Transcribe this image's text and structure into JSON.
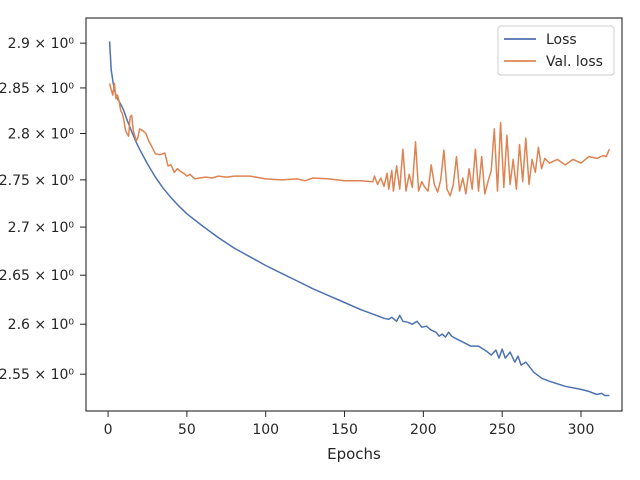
{
  "chart_data": {
    "type": "line",
    "title": "",
    "xlabel": "Epochs",
    "ylabel": "",
    "xlim": [
      -14,
      326
    ],
    "ylim": [
      2.5138,
      2.9285
    ],
    "yscale": "log",
    "x_ticks": [
      0,
      50,
      100,
      150,
      200,
      250,
      300
    ],
    "x_tick_labels": [
      "0",
      "50",
      "100",
      "150",
      "200",
      "250",
      "300"
    ],
    "y_ticks": [
      2.55,
      2.6,
      2.65,
      2.7,
      2.75,
      2.8,
      2.85,
      2.9
    ],
    "y_tick_labels": [
      "2.55 × 10⁰",
      "2.6 × 10⁰",
      "2.65 × 10⁰",
      "2.7 × 10⁰",
      "2.75 × 10⁰",
      "2.8 × 10⁰",
      "2.85 × 10⁰",
      "2.9 × 10⁰"
    ],
    "grid": false,
    "legend_position": "top-right",
    "series": [
      {
        "name": "Loss",
        "color": "#4c72b0",
        "x": [
          1,
          2,
          3,
          4,
          5,
          6,
          8,
          10,
          12,
          15,
          18,
          20,
          25,
          30,
          35,
          40,
          45,
          50,
          60,
          70,
          80,
          90,
          100,
          110,
          120,
          130,
          140,
          150,
          160,
          170,
          175,
          178,
          180,
          183,
          185,
          187,
          190,
          193,
          196,
          199,
          202,
          205,
          208,
          210,
          212,
          214,
          216,
          218,
          220,
          225,
          230,
          235,
          240,
          243,
          246,
          248,
          250,
          252,
          255,
          258,
          260,
          262,
          265,
          270,
          275,
          280,
          290,
          300,
          305,
          310,
          313,
          315,
          318
        ],
        "y": [
          2.902,
          2.87,
          2.858,
          2.848,
          2.842,
          2.838,
          2.832,
          2.825,
          2.815,
          2.802,
          2.79,
          2.783,
          2.767,
          2.753,
          2.741,
          2.731,
          2.722,
          2.714,
          2.701,
          2.689,
          2.678,
          2.669,
          2.66,
          2.652,
          2.644,
          2.636,
          2.629,
          2.622,
          2.615,
          2.609,
          2.606,
          2.605,
          2.607,
          2.603,
          2.609,
          2.603,
          2.602,
          2.6,
          2.603,
          2.597,
          2.598,
          2.594,
          2.592,
          2.588,
          2.59,
          2.587,
          2.592,
          2.588,
          2.586,
          2.582,
          2.578,
          2.578,
          2.573,
          2.569,
          2.574,
          2.566,
          2.575,
          2.566,
          2.572,
          2.562,
          2.568,
          2.559,
          2.562,
          2.552,
          2.546,
          2.543,
          2.538,
          2.535,
          2.533,
          2.53,
          2.531,
          2.529,
          2.529
        ]
      },
      {
        "name": "Val. loss",
        "color": "#dd8452",
        "x": [
          1,
          2,
          3,
          4,
          5,
          6,
          7,
          8,
          9,
          10,
          11,
          12,
          13,
          14,
          15,
          16,
          17,
          18,
          19,
          20,
          22,
          24,
          26,
          28,
          30,
          33,
          36,
          37,
          38,
          40,
          42,
          44,
          46,
          48,
          50,
          52,
          55,
          58,
          62,
          66,
          70,
          75,
          80,
          90,
          100,
          110,
          120,
          125,
          130,
          140,
          150,
          160,
          168,
          169,
          171,
          173,
          175,
          177,
          178,
          180,
          181,
          183,
          185,
          187,
          189,
          191,
          193,
          195,
          197,
          199,
          201,
          203,
          205,
          207,
          209,
          211,
          213,
          215,
          217,
          219,
          221,
          223,
          225,
          227,
          229,
          231,
          233,
          235,
          237,
          239,
          241,
          243,
          245,
          247,
          249,
          251,
          253,
          255,
          257,
          259,
          261,
          263,
          265,
          267,
          269,
          271,
          273,
          275,
          277,
          280,
          285,
          290,
          295,
          300,
          305,
          310,
          314,
          316,
          318
        ],
        "y": [
          2.855,
          2.848,
          2.842,
          2.855,
          2.838,
          2.842,
          2.835,
          2.825,
          2.822,
          2.815,
          2.804,
          2.8,
          2.797,
          2.818,
          2.82,
          2.803,
          2.797,
          2.792,
          2.796,
          2.805,
          2.803,
          2.8,
          2.791,
          2.785,
          2.778,
          2.777,
          2.779,
          2.772,
          2.765,
          2.766,
          2.758,
          2.762,
          2.759,
          2.757,
          2.754,
          2.756,
          2.751,
          2.752,
          2.753,
          2.752,
          2.754,
          2.753,
          2.754,
          2.754,
          2.751,
          2.75,
          2.751,
          2.749,
          2.752,
          2.751,
          2.749,
          2.749,
          2.748,
          2.754,
          2.745,
          2.752,
          2.743,
          2.757,
          2.74,
          2.76,
          2.738,
          2.765,
          2.74,
          2.783,
          2.738,
          2.756,
          2.742,
          2.791,
          2.738,
          2.748,
          2.742,
          2.738,
          2.766,
          2.745,
          2.737,
          2.75,
          2.782,
          2.74,
          2.733,
          2.745,
          2.775,
          2.738,
          2.752,
          2.735,
          2.762,
          2.74,
          2.783,
          2.738,
          2.775,
          2.735,
          2.748,
          2.76,
          2.805,
          2.738,
          2.812,
          2.742,
          2.798,
          2.745,
          2.772,
          2.74,
          2.788,
          2.748,
          2.795,
          2.745,
          2.772,
          2.758,
          2.785,
          2.762,
          2.773,
          2.768,
          2.772,
          2.766,
          2.772,
          2.768,
          2.775,
          2.773,
          2.776,
          2.775,
          2.783
        ]
      }
    ]
  }
}
